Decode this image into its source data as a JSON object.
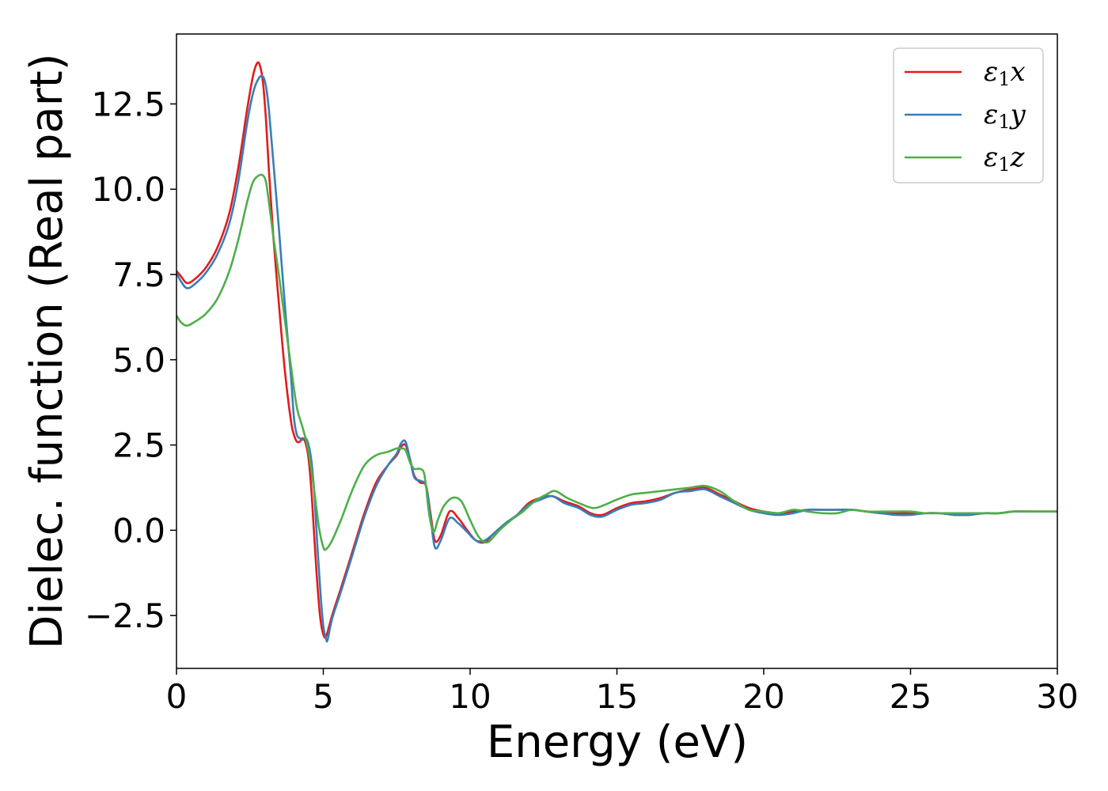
{
  "chart_data": {
    "type": "line",
    "title": "",
    "xlabel": "Energy (eV)",
    "ylabel": "Dielec. function (Real part)",
    "xlim": [
      0,
      30
    ],
    "ylim": [
      -4.05,
      14.55
    ],
    "xticks": [
      0,
      5,
      10,
      15,
      20,
      25,
      30
    ],
    "xtick_labels": [
      "0",
      "5",
      "10",
      "15",
      "20",
      "25",
      "30"
    ],
    "yticks": [
      -2.5,
      0.0,
      2.5,
      5.0,
      7.5,
      10.0,
      12.5
    ],
    "ytick_labels": [
      "−2.5",
      "0.0",
      "2.5",
      "5.0",
      "7.5",
      "10.0",
      "12.5"
    ],
    "grid": false,
    "legend_position": "top-right",
    "series": [
      {
        "name": "ε1x",
        "legend": {
          "symbol": "ε",
          "sub": "1",
          "var": "x"
        },
        "color": "#e41a1c",
        "x": [
          0,
          0.15,
          0.35,
          0.6,
          1.0,
          1.4,
          1.8,
          2.1,
          2.4,
          2.6,
          2.75,
          2.85,
          2.95,
          3.05,
          3.15,
          3.3,
          3.5,
          3.7,
          3.9,
          4.0,
          4.1,
          4.2,
          4.3,
          4.4,
          4.5,
          4.6,
          4.7,
          4.8,
          4.9,
          5.0,
          5.1,
          5.3,
          5.6,
          6.0,
          6.4,
          6.8,
          7.2,
          7.5,
          7.65,
          7.8,
          7.95,
          8.1,
          8.3,
          8.5,
          8.65,
          8.8,
          9.0,
          9.3,
          9.6,
          9.9,
          10.2,
          10.5,
          10.8,
          11.2,
          11.6,
          12.0,
          12.4,
          12.8,
          13.2,
          13.7,
          14.1,
          14.5,
          15.0,
          15.5,
          16.0,
          16.5,
          17.0,
          17.5,
          18.0,
          18.5,
          19.0,
          19.5,
          20.0,
          20.5,
          21.0,
          21.5,
          22.0,
          22.5,
          23.0,
          23.5,
          24.0,
          24.5,
          25.0,
          25.5,
          26.0,
          26.5,
          27.0,
          27.5,
          28.0,
          28.5,
          29.0,
          29.5,
          30.0
        ],
        "y": [
          7.6,
          7.45,
          7.25,
          7.35,
          7.7,
          8.3,
          9.3,
          10.6,
          12.3,
          13.3,
          13.7,
          13.6,
          13.1,
          12.0,
          10.5,
          8.6,
          6.5,
          4.6,
          3.2,
          2.8,
          2.6,
          2.6,
          2.7,
          2.55,
          2.1,
          1.1,
          -0.3,
          -1.6,
          -2.6,
          -3.05,
          -3.1,
          -2.5,
          -1.7,
          -0.6,
          0.5,
          1.4,
          1.9,
          2.2,
          2.45,
          2.5,
          2.1,
          1.6,
          1.4,
          1.3,
          0.5,
          -0.3,
          -0.15,
          0.55,
          0.35,
          0.0,
          -0.3,
          -0.35,
          -0.1,
          0.2,
          0.45,
          0.8,
          0.95,
          1.0,
          0.85,
          0.7,
          0.5,
          0.45,
          0.65,
          0.8,
          0.85,
          0.95,
          1.1,
          1.2,
          1.25,
          1.05,
          0.85,
          0.65,
          0.55,
          0.5,
          0.55,
          0.6,
          0.6,
          0.6,
          0.6,
          0.55,
          0.5,
          0.5,
          0.5,
          0.5,
          0.5,
          0.45,
          0.45,
          0.5,
          0.5,
          0.55,
          0.55,
          0.55,
          0.55
        ]
      },
      {
        "name": "ε1y",
        "legend": {
          "symbol": "ε",
          "sub": "1",
          "var": "y"
        },
        "color": "#377eb8",
        "x": [
          0,
          0.15,
          0.35,
          0.6,
          1.0,
          1.4,
          1.8,
          2.1,
          2.4,
          2.6,
          2.8,
          2.95,
          3.05,
          3.15,
          3.3,
          3.5,
          3.7,
          3.9,
          4.0,
          4.1,
          4.2,
          4.3,
          4.4,
          4.5,
          4.6,
          4.7,
          4.8,
          4.9,
          5.0,
          5.1,
          5.15,
          5.3,
          5.6,
          6.0,
          6.4,
          6.8,
          7.2,
          7.5,
          7.65,
          7.8,
          7.95,
          8.1,
          8.3,
          8.5,
          8.65,
          8.8,
          9.0,
          9.3,
          9.6,
          9.9,
          10.2,
          10.5,
          10.8,
          11.2,
          11.6,
          12.0,
          12.4,
          12.8,
          13.2,
          13.7,
          14.1,
          14.5,
          15.0,
          15.5,
          16.0,
          16.5,
          17.0,
          17.5,
          18.0,
          18.5,
          19.0,
          19.5,
          20.0,
          20.5,
          21.0,
          21.5,
          22.0,
          22.5,
          23.0,
          23.5,
          24.0,
          24.5,
          25.0,
          25.5,
          26.0,
          26.5,
          27.0,
          27.5,
          28.0,
          28.5,
          29.0,
          29.5,
          30.0
        ],
        "y": [
          7.55,
          7.3,
          7.1,
          7.2,
          7.55,
          8.1,
          9.0,
          10.2,
          11.9,
          12.8,
          13.25,
          13.3,
          13.0,
          12.3,
          10.8,
          8.7,
          6.5,
          4.5,
          3.3,
          2.8,
          2.7,
          2.65,
          2.7,
          2.5,
          2.0,
          1.0,
          -0.5,
          -1.8,
          -2.8,
          -3.2,
          -3.2,
          -2.6,
          -1.8,
          -0.7,
          0.4,
          1.3,
          1.9,
          2.25,
          2.55,
          2.6,
          2.1,
          1.55,
          1.45,
          1.3,
          0.4,
          -0.5,
          -0.3,
          0.35,
          0.2,
          -0.05,
          -0.3,
          -0.3,
          -0.1,
          0.2,
          0.45,
          0.75,
          0.9,
          1.0,
          0.8,
          0.65,
          0.45,
          0.4,
          0.6,
          0.75,
          0.8,
          0.9,
          1.1,
          1.15,
          1.2,
          1.0,
          0.8,
          0.6,
          0.5,
          0.45,
          0.5,
          0.6,
          0.6,
          0.6,
          0.6,
          0.55,
          0.5,
          0.45,
          0.45,
          0.5,
          0.5,
          0.45,
          0.45,
          0.5,
          0.5,
          0.55,
          0.55,
          0.55,
          0.55
        ]
      },
      {
        "name": "ε1z",
        "legend": {
          "symbol": "ε",
          "sub": "1",
          "var": "z"
        },
        "color": "#4daf4a",
        "x": [
          0,
          0.15,
          0.35,
          0.6,
          1.0,
          1.4,
          1.8,
          2.1,
          2.4,
          2.6,
          2.8,
          2.95,
          3.05,
          3.15,
          3.3,
          3.5,
          3.7,
          3.9,
          4.1,
          4.3,
          4.5,
          4.7,
          4.85,
          5.0,
          5.1,
          5.3,
          5.6,
          6.0,
          6.4,
          6.8,
          7.2,
          7.5,
          7.65,
          7.8,
          7.95,
          8.1,
          8.3,
          8.45,
          8.6,
          8.75,
          8.9,
          9.1,
          9.4,
          9.7,
          10.0,
          10.3,
          10.6,
          11.0,
          11.4,
          11.8,
          12.2,
          12.6,
          12.9,
          13.3,
          13.7,
          14.2,
          14.6,
          15.0,
          15.5,
          16.0,
          16.5,
          17.0,
          17.5,
          18.0,
          18.5,
          19.0,
          19.5,
          20.0,
          20.5,
          21.0,
          21.5,
          22.0,
          22.5,
          23.0,
          23.5,
          24.0,
          24.5,
          25.0,
          25.5,
          26.0,
          26.5,
          27.0,
          27.5,
          28.0,
          28.5,
          29.0,
          29.5,
          30.0
        ],
        "y": [
          6.3,
          6.1,
          6.0,
          6.1,
          6.35,
          6.8,
          7.6,
          8.5,
          9.6,
          10.2,
          10.4,
          10.4,
          10.2,
          9.6,
          8.6,
          7.4,
          6.1,
          4.8,
          3.6,
          3.0,
          2.3,
          1.1,
          0.1,
          -0.5,
          -0.55,
          -0.3,
          0.3,
          1.2,
          1.9,
          2.2,
          2.3,
          2.4,
          2.4,
          2.35,
          2.0,
          1.8,
          1.8,
          1.6,
          0.5,
          -0.05,
          0.3,
          0.7,
          0.95,
          0.85,
          0.3,
          -0.2,
          -0.35,
          0.0,
          0.3,
          0.55,
          0.85,
          1.05,
          1.15,
          0.95,
          0.8,
          0.65,
          0.75,
          0.9,
          1.05,
          1.1,
          1.15,
          1.2,
          1.25,
          1.3,
          1.15,
          0.85,
          0.6,
          0.55,
          0.5,
          0.6,
          0.55,
          0.5,
          0.5,
          0.6,
          0.55,
          0.55,
          0.55,
          0.55,
          0.5,
          0.5,
          0.5,
          0.5,
          0.5,
          0.5,
          0.55,
          0.55,
          0.55,
          0.55
        ]
      }
    ]
  }
}
